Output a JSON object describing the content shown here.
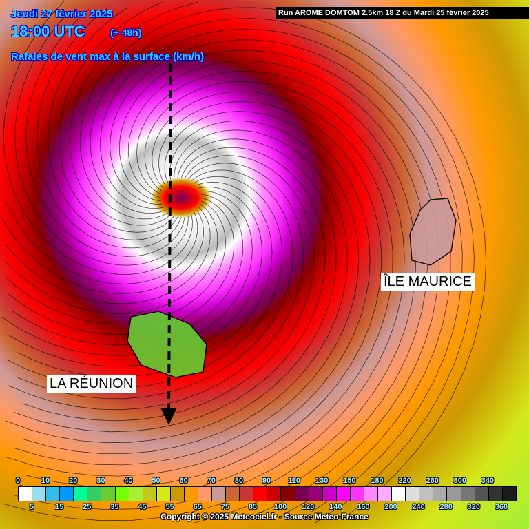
{
  "header": {
    "date": "Jeudi 27 février 2025",
    "time": "18:00 UTC",
    "lead": "(+ 48h)",
    "parameter": "Rafales de vent max à la surface (km/h)",
    "run": "Run AROME DOMTOM 2.5km 18 Z du Mardi 25 février 2025"
  },
  "places": {
    "maurice": "ÎLE MAURICE",
    "reunion": "LA RÉUNION"
  },
  "legend": {
    "top_labels": [
      "0",
      "10",
      "20",
      "30",
      "40",
      "50",
      "60",
      "70",
      "80",
      "90",
      "110",
      "130",
      "150",
      "180",
      "220",
      "260",
      "300",
      "340"
    ],
    "bottom_labels": [
      "5",
      "15",
      "25",
      "35",
      "45",
      "55",
      "65",
      "75",
      "85",
      "100",
      "120",
      "140",
      "160",
      "200",
      "240",
      "280",
      "320",
      "360"
    ],
    "colors": [
      "#ffffff",
      "#99ddee",
      "#33bbee",
      "#0099ff",
      "#00ff99",
      "#33cc66",
      "#66cc33",
      "#77ff00",
      "#aaee33",
      "#c0c81a",
      "#d4e81a",
      "#cc9900",
      "#ff9900",
      "#ff9966",
      "#cc9999",
      "#cc6633",
      "#cc3333",
      "#ff0000",
      "#cc0000",
      "#880000",
      "#770055",
      "#990077",
      "#cc00cc",
      "#ff00ff",
      "#ff33ff",
      "#ff88ff",
      "#ffaaff",
      "#ffffff",
      "#dddddd",
      "#c0c0c0",
      "#aaaaaa",
      "#999999",
      "#777777",
      "#555555",
      "#333333",
      "#1a1a1a"
    ]
  },
  "copyright": "Copyright © 2025 Meteociel.fr - Source Meteo-France"
}
